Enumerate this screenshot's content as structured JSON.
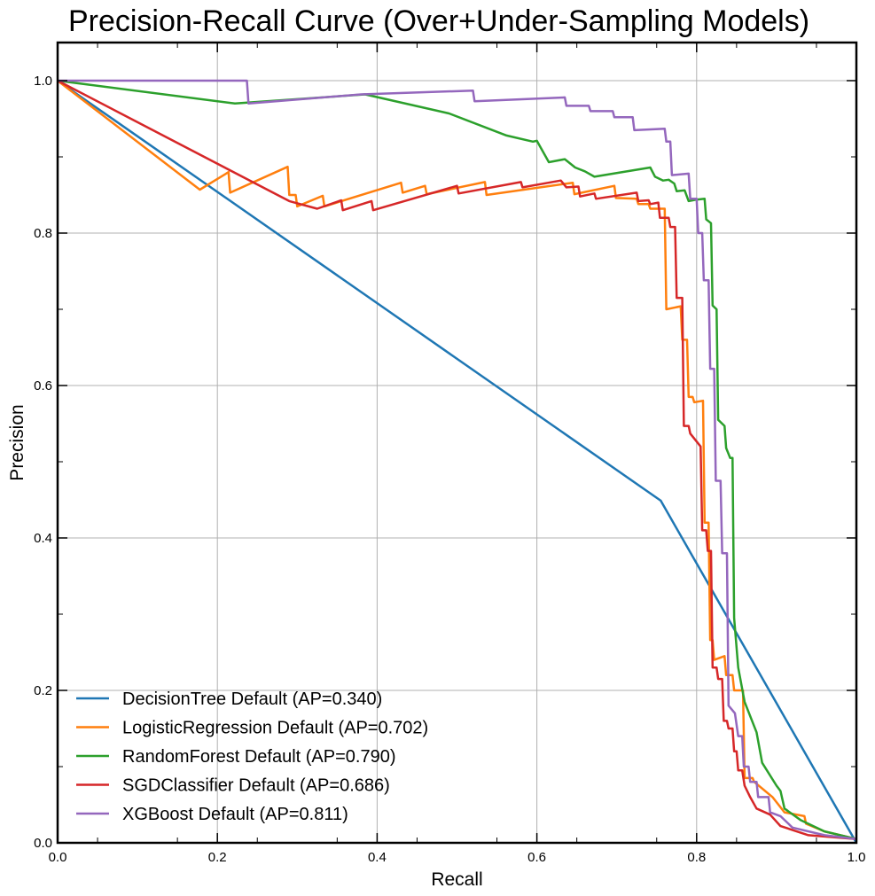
{
  "chart_data": {
    "type": "line",
    "title": "Precision-Recall Curve (Over+Under-Sampling Models)",
    "xlabel": "Recall",
    "ylabel": "Precision",
    "xlim": [
      0.0,
      1.0
    ],
    "ylim": [
      0.0,
      1.05
    ],
    "x_ticks": [
      "0.0",
      "0.2",
      "0.4",
      "0.6",
      "0.8",
      "1.0"
    ],
    "y_ticks": [
      "0.0",
      "0.2",
      "0.4",
      "0.6",
      "0.8",
      "1.0"
    ],
    "grid": true,
    "legend_position": "lower-left",
    "series": [
      {
        "name": "DecisionTree Default (AP=0.340)",
        "color": "#1f77b4",
        "points": [
          [
            0.0,
            1.0
          ],
          [
            0.755,
            0.449
          ],
          [
            1.0,
            0.0
          ]
        ]
      },
      {
        "name": "LogisticRegression Default (AP=0.702)",
        "color": "#ff7f0e",
        "points": [
          [
            0.0,
            1.0
          ],
          [
            0.178,
            0.857
          ],
          [
            0.214,
            0.88
          ],
          [
            0.216,
            0.853
          ],
          [
            0.288,
            0.887
          ],
          [
            0.29,
            0.85
          ],
          [
            0.298,
            0.85
          ],
          [
            0.3,
            0.835
          ],
          [
            0.332,
            0.849
          ],
          [
            0.334,
            0.835
          ],
          [
            0.43,
            0.866
          ],
          [
            0.432,
            0.853
          ],
          [
            0.46,
            0.862
          ],
          [
            0.462,
            0.851
          ],
          [
            0.535,
            0.867
          ],
          [
            0.537,
            0.85
          ],
          [
            0.645,
            0.866
          ],
          [
            0.647,
            0.851
          ],
          [
            0.697,
            0.862
          ],
          [
            0.699,
            0.846
          ],
          [
            0.725,
            0.845
          ],
          [
            0.727,
            0.838
          ],
          [
            0.74,
            0.838
          ],
          [
            0.742,
            0.832
          ],
          [
            0.76,
            0.832
          ],
          [
            0.762,
            0.7
          ],
          [
            0.78,
            0.704
          ],
          [
            0.782,
            0.66
          ],
          [
            0.788,
            0.66
          ],
          [
            0.79,
            0.585
          ],
          [
            0.795,
            0.585
          ],
          [
            0.797,
            0.578
          ],
          [
            0.808,
            0.58
          ],
          [
            0.81,
            0.42
          ],
          [
            0.815,
            0.42
          ],
          [
            0.817,
            0.266
          ],
          [
            0.82,
            0.266
          ],
          [
            0.822,
            0.24
          ],
          [
            0.835,
            0.245
          ],
          [
            0.837,
            0.22
          ],
          [
            0.845,
            0.22
          ],
          [
            0.847,
            0.2
          ],
          [
            0.858,
            0.2
          ],
          [
            0.86,
            0.085
          ],
          [
            0.87,
            0.085
          ],
          [
            0.872,
            0.08
          ],
          [
            0.895,
            0.06
          ],
          [
            0.91,
            0.04
          ],
          [
            0.935,
            0.035
          ],
          [
            0.937,
            0.025
          ],
          [
            0.96,
            0.015
          ],
          [
            1.0,
            0.005
          ]
        ]
      },
      {
        "name": "RandomForest Default (AP=0.790)",
        "color": "#2ca02c",
        "points": [
          [
            0.0,
            1.0
          ],
          [
            0.222,
            0.97
          ],
          [
            0.385,
            0.982
          ],
          [
            0.49,
            0.957
          ],
          [
            0.562,
            0.928
          ],
          [
            0.595,
            0.92
          ],
          [
            0.6,
            0.921
          ],
          [
            0.615,
            0.893
          ],
          [
            0.635,
            0.897
          ],
          [
            0.648,
            0.886
          ],
          [
            0.66,
            0.881
          ],
          [
            0.672,
            0.874
          ],
          [
            0.742,
            0.886
          ],
          [
            0.748,
            0.874
          ],
          [
            0.758,
            0.869
          ],
          [
            0.765,
            0.87
          ],
          [
            0.772,
            0.865
          ],
          [
            0.775,
            0.855
          ],
          [
            0.785,
            0.856
          ],
          [
            0.79,
            0.842
          ],
          [
            0.8,
            0.844
          ],
          [
            0.81,
            0.845
          ],
          [
            0.812,
            0.818
          ],
          [
            0.818,
            0.813
          ],
          [
            0.82,
            0.705
          ],
          [
            0.825,
            0.7
          ],
          [
            0.827,
            0.555
          ],
          [
            0.835,
            0.547
          ],
          [
            0.837,
            0.518
          ],
          [
            0.842,
            0.505
          ],
          [
            0.845,
            0.505
          ],
          [
            0.847,
            0.295
          ],
          [
            0.852,
            0.23
          ],
          [
            0.86,
            0.185
          ],
          [
            0.875,
            0.145
          ],
          [
            0.882,
            0.105
          ],
          [
            0.9,
            0.075
          ],
          [
            0.905,
            0.068
          ],
          [
            0.91,
            0.045
          ],
          [
            0.93,
            0.03
          ],
          [
            0.96,
            0.015
          ],
          [
            1.0,
            0.005
          ]
        ]
      },
      {
        "name": "SGDClassifier Default (AP=0.686)",
        "color": "#d62728",
        "points": [
          [
            0.0,
            1.0
          ],
          [
            0.29,
            0.842
          ],
          [
            0.325,
            0.832
          ],
          [
            0.355,
            0.843
          ],
          [
            0.357,
            0.83
          ],
          [
            0.393,
            0.842
          ],
          [
            0.395,
            0.83
          ],
          [
            0.5,
            0.862
          ],
          [
            0.502,
            0.852
          ],
          [
            0.58,
            0.867
          ],
          [
            0.582,
            0.86
          ],
          [
            0.63,
            0.869
          ],
          [
            0.637,
            0.86
          ],
          [
            0.652,
            0.861
          ],
          [
            0.654,
            0.848
          ],
          [
            0.672,
            0.852
          ],
          [
            0.674,
            0.845
          ],
          [
            0.725,
            0.853
          ],
          [
            0.727,
            0.842
          ],
          [
            0.74,
            0.843
          ],
          [
            0.742,
            0.838
          ],
          [
            0.752,
            0.84
          ],
          [
            0.754,
            0.82
          ],
          [
            0.765,
            0.82
          ],
          [
            0.767,
            0.808
          ],
          [
            0.773,
            0.808
          ],
          [
            0.775,
            0.715
          ],
          [
            0.782,
            0.715
          ],
          [
            0.784,
            0.547
          ],
          [
            0.79,
            0.547
          ],
          [
            0.792,
            0.537
          ],
          [
            0.805,
            0.52
          ],
          [
            0.807,
            0.41
          ],
          [
            0.812,
            0.41
          ],
          [
            0.814,
            0.383
          ],
          [
            0.818,
            0.383
          ],
          [
            0.82,
            0.23
          ],
          [
            0.825,
            0.23
          ],
          [
            0.827,
            0.215
          ],
          [
            0.832,
            0.215
          ],
          [
            0.834,
            0.16
          ],
          [
            0.838,
            0.16
          ],
          [
            0.84,
            0.15
          ],
          [
            0.845,
            0.15
          ],
          [
            0.847,
            0.12
          ],
          [
            0.85,
            0.12
          ],
          [
            0.852,
            0.095
          ],
          [
            0.857,
            0.095
          ],
          [
            0.86,
            0.075
          ],
          [
            0.867,
            0.06
          ],
          [
            0.875,
            0.045
          ],
          [
            0.892,
            0.037
          ],
          [
            0.905,
            0.022
          ],
          [
            0.94,
            0.01
          ],
          [
            1.0,
            0.005
          ]
        ]
      },
      {
        "name": "XGBoost Default (AP=0.811)",
        "color": "#9467bd",
        "points": [
          [
            0.0,
            1.0
          ],
          [
            0.237,
            1.0
          ],
          [
            0.239,
            0.97
          ],
          [
            0.38,
            0.982
          ],
          [
            0.52,
            0.987
          ],
          [
            0.522,
            0.973
          ],
          [
            0.635,
            0.978
          ],
          [
            0.637,
            0.967
          ],
          [
            0.665,
            0.967
          ],
          [
            0.667,
            0.96
          ],
          [
            0.695,
            0.96
          ],
          [
            0.697,
            0.952
          ],
          [
            0.72,
            0.952
          ],
          [
            0.722,
            0.935
          ],
          [
            0.76,
            0.937
          ],
          [
            0.762,
            0.92
          ],
          [
            0.767,
            0.92
          ],
          [
            0.769,
            0.876
          ],
          [
            0.79,
            0.878
          ],
          [
            0.792,
            0.845
          ],
          [
            0.8,
            0.845
          ],
          [
            0.802,
            0.8
          ],
          [
            0.807,
            0.8
          ],
          [
            0.809,
            0.738
          ],
          [
            0.815,
            0.738
          ],
          [
            0.817,
            0.622
          ],
          [
            0.822,
            0.622
          ],
          [
            0.824,
            0.475
          ],
          [
            0.83,
            0.475
          ],
          [
            0.832,
            0.38
          ],
          [
            0.838,
            0.38
          ],
          [
            0.84,
            0.18
          ],
          [
            0.848,
            0.17
          ],
          [
            0.852,
            0.14
          ],
          [
            0.857,
            0.14
          ],
          [
            0.859,
            0.1
          ],
          [
            0.865,
            0.1
          ],
          [
            0.867,
            0.08
          ],
          [
            0.875,
            0.08
          ],
          [
            0.877,
            0.06
          ],
          [
            0.89,
            0.06
          ],
          [
            0.892,
            0.04
          ],
          [
            0.905,
            0.035
          ],
          [
            0.92,
            0.02
          ],
          [
            0.96,
            0.01
          ],
          [
            1.0,
            0.005
          ]
        ]
      }
    ]
  }
}
